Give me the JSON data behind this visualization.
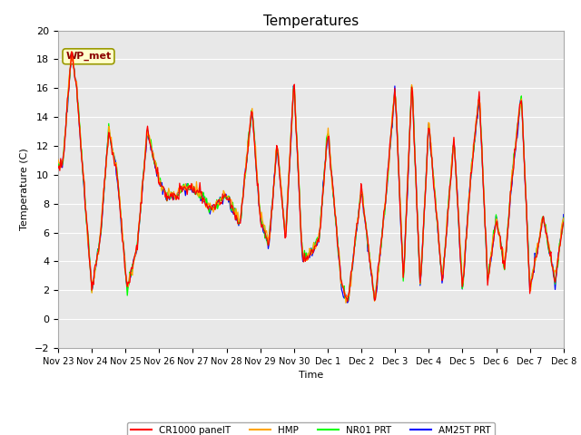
{
  "title": "Temperatures",
  "ylabel": "Temperature (C)",
  "xlabel": "Time",
  "annotation": "WP_met",
  "ylim": [
    -2,
    20
  ],
  "background_color": "#e8e8e8",
  "grid_color": "white",
  "legend_entries": [
    "CR1000 panelT",
    "HMP",
    "NR01 PRT",
    "AM25T PRT"
  ],
  "line_colors": [
    "red",
    "orange",
    "lime",
    "blue"
  ],
  "x_tick_labels": [
    "Nov 23",
    "Nov 24",
    "Nov 25",
    "Nov 26",
    "Nov 27",
    "Nov 28",
    "Nov 29",
    "Nov 30",
    "Dec 1",
    "Dec 2",
    "Dec 3",
    "Dec 4",
    "Dec 5",
    "Dec 6",
    "Dec 7",
    "Dec 8"
  ],
  "n_days": 15,
  "title_fontsize": 11,
  "annotation_color": "#8B0000",
  "annotation_bg": "#ffffcc",
  "annotation_border": "#999900",
  "key_times": [
    0.0,
    0.15,
    0.4,
    0.55,
    1.0,
    1.25,
    1.5,
    1.75,
    2.05,
    2.35,
    2.65,
    3.0,
    3.2,
    3.5,
    3.75,
    4.0,
    4.25,
    4.5,
    4.75,
    5.0,
    5.4,
    5.75,
    6.0,
    6.25,
    6.5,
    6.75,
    7.0,
    7.25,
    7.5,
    7.75,
    8.0,
    8.4,
    8.6,
    9.0,
    9.4,
    9.75,
    10.0,
    10.25,
    10.5,
    10.75,
    11.0,
    11.4,
    11.75,
    12.0,
    12.25,
    12.5,
    12.75,
    13.0,
    13.25,
    13.5,
    13.75,
    14.0,
    14.4,
    14.75,
    15.0
  ],
  "key_values": [
    10.5,
    11.0,
    18.5,
    16.0,
    2.0,
    5.5,
    13.0,
    10.0,
    2.0,
    5.0,
    13.0,
    9.5,
    8.5,
    8.5,
    9.0,
    9.0,
    8.5,
    7.5,
    8.0,
    8.5,
    6.5,
    14.5,
    7.0,
    5.0,
    12.0,
    5.5,
    16.5,
    4.0,
    4.5,
    5.5,
    13.0,
    2.5,
    1.0,
    9.0,
    1.0,
    9.0,
    16.0,
    2.5,
    16.5,
    2.0,
    13.5,
    2.5,
    12.5,
    2.0,
    10.0,
    15.5,
    2.5,
    7.0,
    3.5,
    10.5,
    15.5,
    2.0,
    7.0,
    2.5,
    7.0
  ]
}
